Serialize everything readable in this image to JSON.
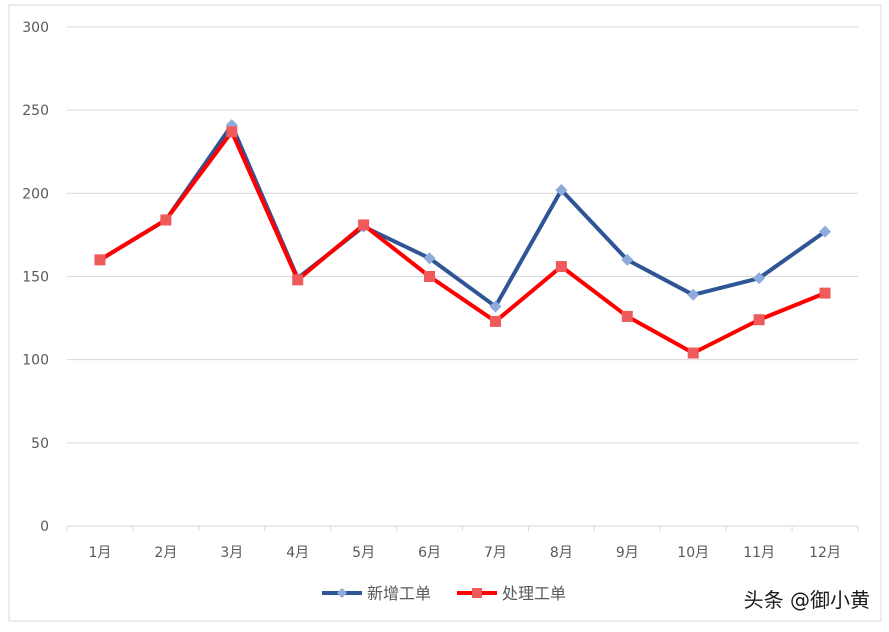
{
  "chart_data": {
    "type": "line",
    "categories": [
      "1月",
      "2月",
      "3月",
      "4月",
      "5月",
      "6月",
      "7月",
      "8月",
      "9月",
      "10月",
      "11月",
      "12月"
    ],
    "ylim": [
      0,
      300
    ],
    "yticks": [
      0,
      50,
      100,
      150,
      200,
      250,
      300
    ],
    "grid": true,
    "legend_position": "bottom",
    "series": [
      {
        "name": "新增工单",
        "color": "#2f5597",
        "marker_color": "#8faadc",
        "marker": "diamond",
        "values": [
          160,
          184,
          241,
          149,
          180,
          161,
          132,
          202,
          160,
          139,
          149,
          177
        ]
      },
      {
        "name": "处理工单",
        "color": "#ff0000",
        "marker_color": "#f05a5a",
        "marker": "square",
        "values": [
          160,
          184,
          237,
          148,
          181,
          150,
          123,
          156,
          126,
          104,
          124,
          140
        ]
      }
    ]
  },
  "watermark": "头条 @御小黄"
}
